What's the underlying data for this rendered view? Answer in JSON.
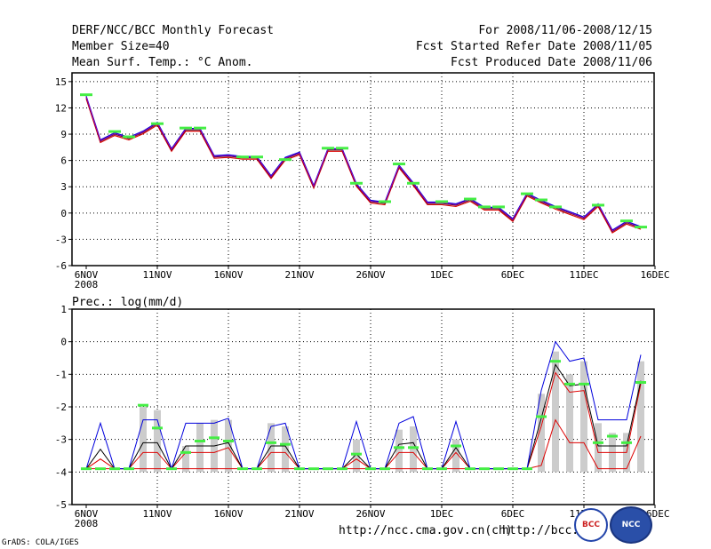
{
  "header": {
    "title": "DERF/NCC/BCC Monthly Forecast",
    "member": "Member Size=40",
    "variable": "Mean Surf. Temp.: °C Anom.",
    "period": "For 2008/11/06-2008/12/15",
    "started": "Fcst Started Refer Date 2008/11/05",
    "produced": "Fcst Produced Date 2008/11/06"
  },
  "footer": {
    "url1": "http://ncc.cma.gov.cn(ch)",
    "url2": "http://bcc.",
    "grads": "GrADS: COLA/IGES",
    "logo_bcc": "BCC",
    "logo_ncc": "NCC"
  },
  "colors": {
    "blue": "#0000dd",
    "red": "#dd0000",
    "black": "#000000",
    "green": "#44ee44",
    "gray": "#cccccc",
    "magenta": "#aa00aa"
  },
  "chart_data": [
    {
      "type": "line",
      "title": "Mean Surf. Temp.: °C Anom.",
      "xlabel": "",
      "ylabel": "",
      "x_ticks": [
        "6NOV",
        "11NOV",
        "16NOV",
        "21NOV",
        "26NOV",
        "1DEC",
        "6DEC",
        "11DEC",
        "16DEC"
      ],
      "x_tick_year": "2008",
      "ylim": [
        -6,
        16
      ],
      "y_ticks": [
        15,
        12,
        9,
        6,
        3,
        0,
        -3,
        -6
      ],
      "series": [
        {
          "name": "mean",
          "values": [
            13.2,
            8.2,
            9.0,
            8.5,
            9.2,
            10.2,
            7.2,
            9.5,
            9.5,
            6.4,
            6.5,
            6.3,
            6.3,
            4.1,
            6.2,
            6.8,
            3.0,
            7.2,
            7.2,
            3.2,
            1.3,
            1.1,
            5.3,
            3.3,
            1.1,
            1.1,
            0.9,
            1.5,
            0.5,
            0.5,
            -0.8,
            2.1,
            1.3,
            0.6,
            0.0,
            -0.6,
            0.9,
            -2.1,
            -1.1,
            -1.7
          ]
        },
        {
          "name": "markers",
          "values": [
            13.5,
            null,
            9.3,
            8.7,
            null,
            10.2,
            null,
            9.7,
            9.7,
            null,
            null,
            6.4,
            6.4,
            null,
            6.1,
            null,
            null,
            7.4,
            7.4,
            3.4,
            null,
            1.3,
            5.6,
            3.4,
            null,
            1.3,
            null,
            1.6,
            0.7,
            0.7,
            null,
            2.2,
            1.5,
            0.7,
            null,
            null,
            0.9,
            null,
            -0.9,
            -1.6
          ]
        }
      ]
    },
    {
      "type": "line",
      "title": "Prec.: log(mm/d)",
      "xlabel": "",
      "ylabel": "",
      "x_ticks": [
        "6NOV",
        "11NOV",
        "16NOV",
        "21NOV",
        "26NOV",
        "1DEC",
        "6DEC",
        "11DEC",
        "16DEC"
      ],
      "x_tick_year": "2008",
      "ylim": [
        -5,
        1
      ],
      "y_ticks": [
        1,
        0,
        -1,
        -2,
        -3,
        -4,
        -5
      ],
      "series": [
        {
          "name": "upper",
          "values": [
            -3.9,
            -2.5,
            -3.9,
            -3.9,
            -2.4,
            -2.4,
            -3.9,
            -2.5,
            -2.5,
            -2.5,
            -2.35,
            -3.9,
            -3.9,
            -2.6,
            -2.5,
            -3.9,
            -3.9,
            -3.9,
            -3.9,
            -2.45,
            -3.9,
            -3.9,
            -2.5,
            -2.3,
            -3.9,
            -3.9,
            -2.45,
            -3.9,
            -3.9,
            -3.9,
            -3.9,
            -3.9,
            -1.5,
            0.0,
            -0.6,
            -0.5,
            -2.4,
            -2.4,
            -2.4,
            -0.4
          ]
        },
        {
          "name": "middle",
          "values": [
            -3.9,
            -3.3,
            -3.9,
            -3.9,
            -3.1,
            -3.1,
            -3.9,
            -3.2,
            -3.2,
            -3.2,
            -3.1,
            -3.9,
            -3.9,
            -3.2,
            -3.2,
            -3.9,
            -3.9,
            -3.9,
            -3.9,
            -3.45,
            -3.9,
            -3.9,
            -3.15,
            -3.1,
            -3.9,
            -3.9,
            -3.25,
            -3.9,
            -3.9,
            -3.9,
            -3.9,
            -3.9,
            -2.35,
            -0.7,
            -1.35,
            -1.3,
            -3.2,
            -3.2,
            -3.2,
            -1.2
          ]
        },
        {
          "name": "lower",
          "values": [
            -3.9,
            -3.6,
            -3.9,
            -3.9,
            -3.4,
            -3.4,
            -3.9,
            -3.4,
            -3.4,
            -3.4,
            -3.25,
            -3.9,
            -3.9,
            -3.4,
            -3.4,
            -3.9,
            -3.9,
            -3.9,
            -3.9,
            -3.6,
            -3.9,
            -3.9,
            -3.4,
            -3.4,
            -3.9,
            -3.9,
            -3.4,
            -3.9,
            -3.9,
            -3.9,
            -3.9,
            -3.9,
            -2.6,
            -0.95,
            -1.55,
            -1.5,
            -3.4,
            -3.4,
            -3.4,
            -1.3
          ]
        },
        {
          "name": "min",
          "values": [
            -3.9,
            -3.9,
            -3.9,
            -3.9,
            -3.9,
            -3.9,
            -3.9,
            -3.9,
            -3.9,
            -3.9,
            -3.9,
            -3.9,
            -3.9,
            -3.9,
            -3.9,
            -3.9,
            -3.9,
            -3.9,
            -3.9,
            -3.9,
            -3.9,
            -3.9,
            -3.9,
            -3.9,
            -3.9,
            -3.9,
            -3.9,
            -3.9,
            -3.9,
            -3.9,
            -3.9,
            -3.9,
            -3.8,
            -2.4,
            -3.1,
            -3.1,
            -3.9,
            -3.9,
            -3.9,
            -2.9
          ]
        },
        {
          "name": "bars",
          "values": [
            null,
            null,
            null,
            null,
            -2.0,
            -2.1,
            null,
            -3.2,
            -2.5,
            -2.4,
            -2.4,
            null,
            null,
            -2.5,
            -2.6,
            null,
            null,
            null,
            null,
            -3.0,
            null,
            null,
            -2.7,
            -2.6,
            null,
            null,
            -3.0,
            null,
            null,
            null,
            null,
            null,
            -1.6,
            -0.3,
            -1.0,
            -0.6,
            -2.5,
            -2.8,
            -2.8,
            -0.6
          ]
        },
        {
          "name": "markers",
          "values": [
            -3.9,
            -3.9,
            -3.9,
            -3.9,
            -1.95,
            -2.65,
            -3.9,
            -3.4,
            -3.05,
            -2.95,
            -3.05,
            -3.9,
            -3.9,
            -3.1,
            -3.15,
            -3.9,
            -3.9,
            -3.9,
            -3.9,
            -3.45,
            -3.9,
            -3.9,
            -3.25,
            -3.25,
            -3.9,
            -3.9,
            -3.2,
            -3.9,
            -3.9,
            -3.9,
            -3.9,
            -3.9,
            -2.3,
            -0.6,
            -1.3,
            -1.3,
            -3.1,
            -2.9,
            -3.1,
            -1.25
          ]
        }
      ]
    }
  ]
}
